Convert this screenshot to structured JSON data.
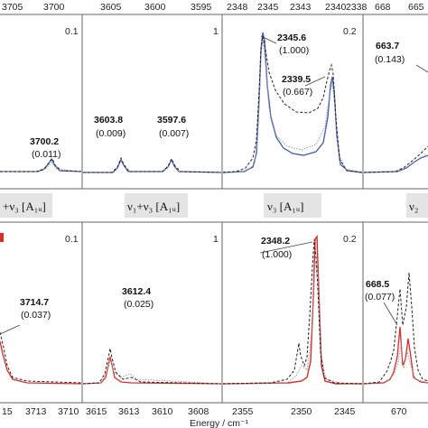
{
  "colors": {
    "blue": "#4a63b8",
    "red": "#dd2a2a",
    "dashed": "#222222",
    "dotted": "#9a9a9a",
    "band": "#e4e4e4"
  },
  "chart_data": [
    {
      "type": "line",
      "panel": "top-1",
      "xticks": [
        "3705",
        "3700"
      ],
      "scale_label": "0.1",
      "peaks": [
        {
          "value": "3700.2",
          "intensity": "(0.011)"
        }
      ]
    },
    {
      "type": "line",
      "panel": "top-2",
      "xticks": [
        "3605",
        "3600",
        "3595"
      ],
      "peaks": [
        {
          "value": "3603.8",
          "intensity": "(0.009)"
        },
        {
          "value": "3597.6",
          "intensity": "(0.007)"
        }
      ]
    },
    {
      "type": "line",
      "panel": "top-3",
      "xticks": [
        "2348",
        "2345",
        "2343",
        "2340",
        "2338"
      ],
      "scale_label": "1",
      "scale_label_2": "0.2",
      "peaks": [
        {
          "value": "2345.6",
          "intensity": "(1.000)"
        },
        {
          "value": "2339.5",
          "intensity": "(0.667)"
        }
      ]
    },
    {
      "type": "line",
      "panel": "top-4",
      "xticks": [
        "668",
        "665"
      ],
      "peaks": [
        {
          "value": "663.7",
          "intensity": "(0.143)"
        }
      ]
    },
    {
      "type": "line",
      "panel": "bottom-1",
      "mode_label": "+ν₃ [A₁ᵤ]",
      "xticks": [
        "15",
        "3713",
        "3710"
      ],
      "scale_label": "0.1",
      "peaks": [
        {
          "value": "3714.7",
          "intensity": "(0.037)"
        }
      ]
    },
    {
      "type": "line",
      "panel": "bottom-2",
      "mode_label": "ν₁+ν₃ [A₁ᵤ]",
      "xticks": [
        "3615",
        "3613",
        "3610",
        "3608"
      ],
      "peaks": [
        {
          "value": "3612.4",
          "intensity": "(0.025)"
        }
      ]
    },
    {
      "type": "line",
      "panel": "bottom-3",
      "mode_label": "ν₃ [A₁ᵤ]",
      "xticks": [
        "2355",
        "2350",
        "2345"
      ],
      "scale_label": "1",
      "scale_label_2": "0.2",
      "peaks": [
        {
          "value": "2348.2",
          "intensity": "(1.000)"
        }
      ]
    },
    {
      "type": "line",
      "panel": "bottom-4",
      "mode_label": "ν₂",
      "xticks": [
        "670"
      ],
      "peaks": [
        {
          "value": "668.5",
          "intensity": "(0.077)"
        }
      ]
    }
  ],
  "xlabel": "Energy / cm⁻¹"
}
